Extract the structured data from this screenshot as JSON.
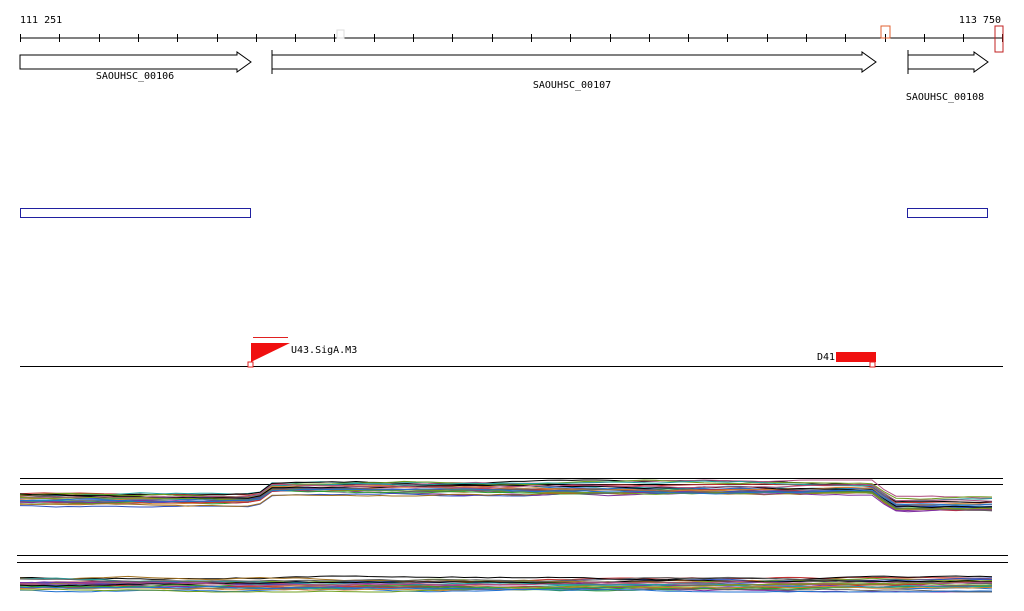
{
  "ruler": {
    "start_label": "111 251",
    "end_label": "113 750"
  },
  "genes": [
    {
      "label": "SAOUHSC_00106"
    },
    {
      "label": "SAOUHSC_00107"
    },
    {
      "label": "SAOUHSC_00108"
    }
  ],
  "promoters": [
    {
      "label": "U43.SigA.M3"
    },
    {
      "label": "D41"
    }
  ]
}
